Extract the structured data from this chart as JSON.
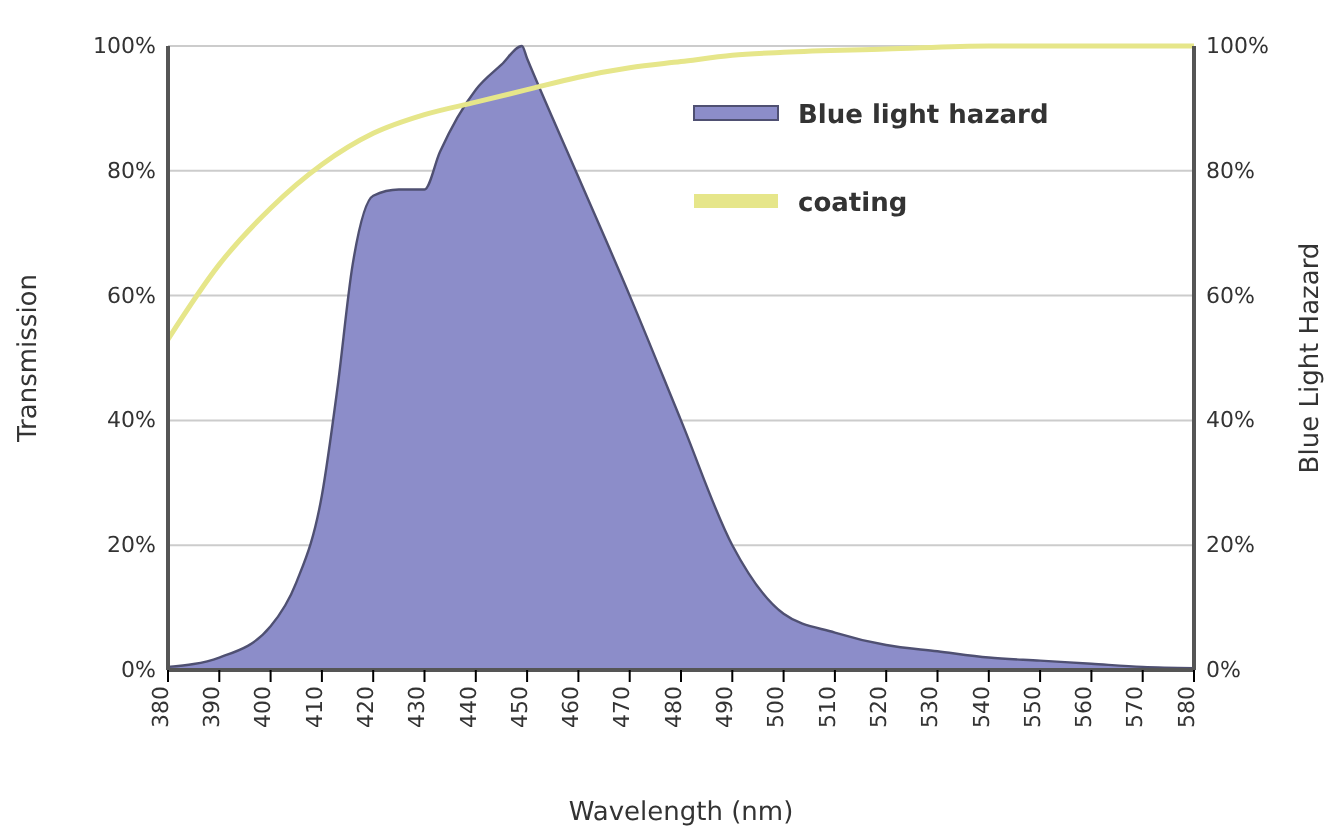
{
  "chart_data": {
    "type": "line",
    "xlabel": "Wavelength (nm)",
    "ylabel": "Transmission",
    "y2label": "Blue Light Hazard",
    "xlim": [
      380,
      580
    ],
    "xticks": [
      380,
      390,
      400,
      410,
      420,
      430,
      440,
      450,
      460,
      470,
      480,
      490,
      500,
      510,
      520,
      530,
      540,
      550,
      560,
      570,
      580
    ],
    "ylim": [
      0,
      100
    ],
    "yticks": [
      {
        "value": 0,
        "label": "0%"
      },
      {
        "value": 20,
        "label": "20%"
      },
      {
        "value": 40,
        "label": "40%"
      },
      {
        "value": 60,
        "label": "60%"
      },
      {
        "value": 80,
        "label": "80%"
      },
      {
        "value": 100,
        "label": "100%"
      }
    ],
    "y2lim": [
      0,
      100
    ],
    "y2ticks": [
      {
        "value": 0,
        "label": "0%"
      },
      {
        "value": 20,
        "label": "20%"
      },
      {
        "value": 40,
        "label": "40%"
      },
      {
        "value": 60,
        "label": "60%"
      },
      {
        "value": 80,
        "label": "80%"
      },
      {
        "value": 100,
        "label": "100%"
      }
    ],
    "grid": "y",
    "legend": "top right",
    "series": [
      {
        "name": "Blue light hazard",
        "type": "area",
        "color": "#8c8dc9",
        "x": [
          380,
          390,
          400,
          405,
          410,
          413,
          416,
          420,
          425,
          430,
          433,
          440,
          445,
          449,
          450,
          460,
          470,
          480,
          490,
          500,
          510,
          520,
          530,
          540,
          550,
          560,
          570,
          580
        ],
        "values": [
          0.5,
          2,
          7,
          14,
          28,
          45,
          65,
          76,
          77,
          77,
          83,
          93,
          97,
          100,
          98,
          79,
          60,
          40,
          20,
          9,
          6,
          4,
          3,
          2,
          1.5,
          1,
          0.5,
          0.3
        ]
      },
      {
        "name": "coating",
        "color": "#e6e68a",
        "x": [
          380,
          390,
          400,
          410,
          420,
          430,
          440,
          450,
          460,
          470,
          480,
          490,
          500,
          520,
          540,
          580
        ],
        "values": [
          53,
          65,
          74,
          81,
          86,
          89,
          91,
          93,
          95,
          96.5,
          97.5,
          98.5,
          99,
          99.5,
          100,
          100
        ]
      }
    ]
  }
}
